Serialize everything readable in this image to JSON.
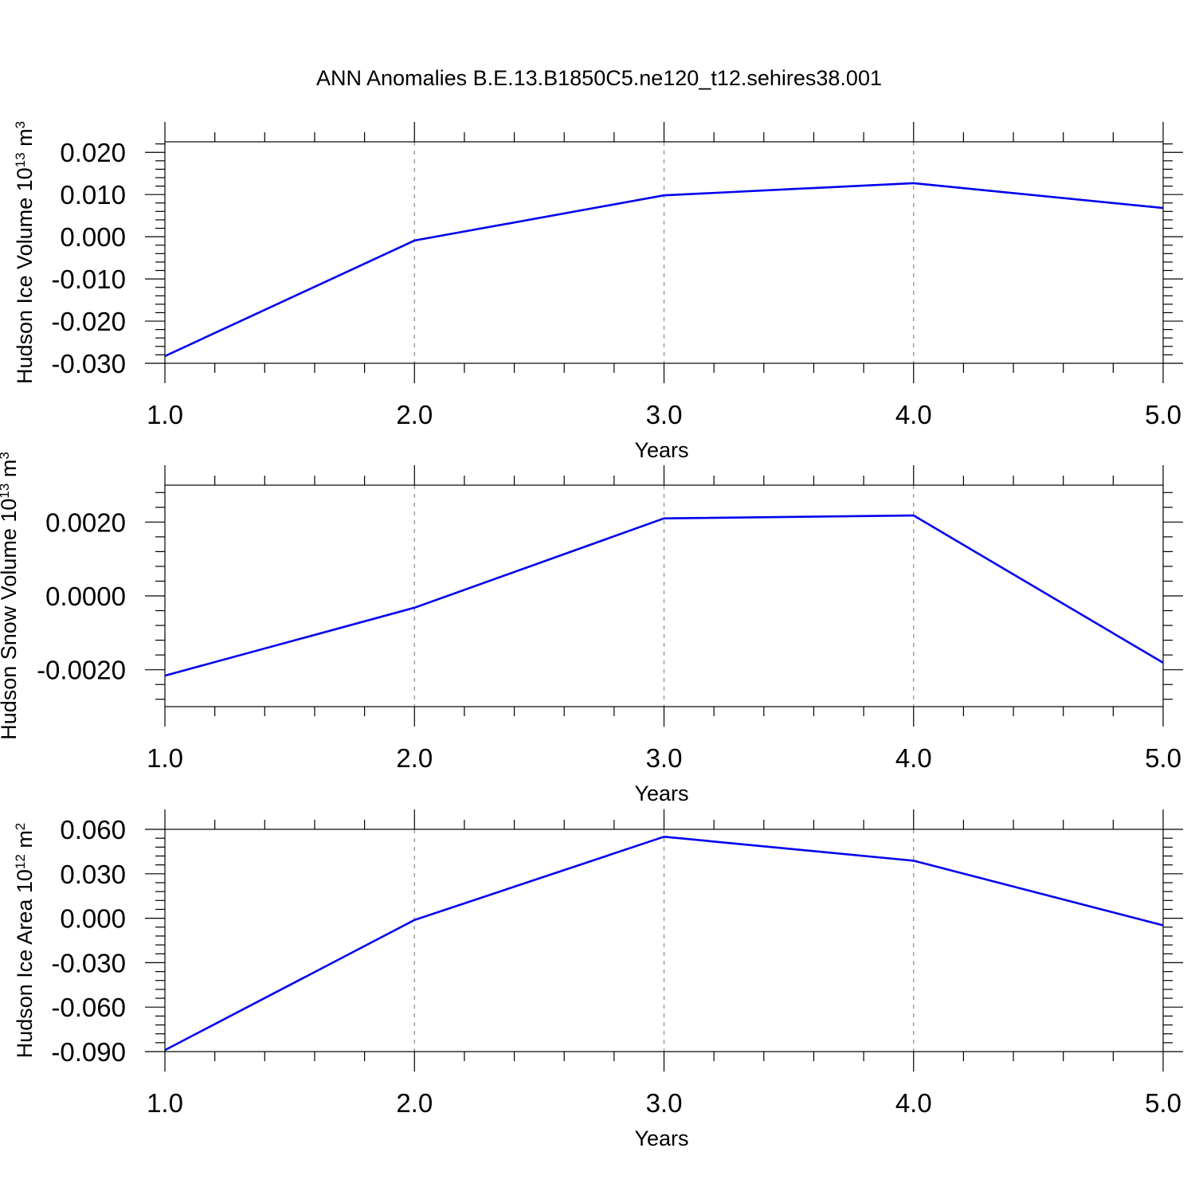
{
  "title": "ANN Anomalies B.E.13.B1850C5.ne120_t12.sehires38.001",
  "chart_data": [
    {
      "type": "line",
      "ylabel": {
        "text": "Hudson Ice Volume 10",
        "sup": "13",
        "unit": " m",
        "unit_sup": "3"
      },
      "xlabel": "Years",
      "x": [
        1.0,
        2.0,
        3.0,
        4.0,
        5.0
      ],
      "xlim": [
        1.0,
        5.0
      ],
      "xticks": [
        "1.0",
        "2.0",
        "3.0",
        "4.0",
        "5.0"
      ],
      "ylim": [
        -0.03,
        0.0225
      ],
      "yticks": [
        "0.020",
        "0.010",
        "0.000",
        "-0.010",
        "-0.020",
        "-0.030"
      ],
      "ytick_values": [
        0.02,
        0.01,
        0.0,
        -0.01,
        -0.02,
        -0.03
      ],
      "grid": "dashed vertical at major x ticks",
      "series": [
        {
          "values": [
            -0.0283,
            -0.0009,
            0.0098,
            0.0127,
            0.0068
          ],
          "color": "#0000ee"
        }
      ]
    },
    {
      "type": "line",
      "ylabel": {
        "text": "Hudson Snow Volume 10",
        "sup": "13",
        "unit": " m",
        "unit_sup": "3"
      },
      "xlabel": "Years",
      "x": [
        1.0,
        2.0,
        3.0,
        4.0,
        5.0
      ],
      "xlim": [
        1.0,
        5.0
      ],
      "xticks": [
        "1.0",
        "2.0",
        "3.0",
        "4.0",
        "5.0"
      ],
      "ylim": [
        -0.003,
        0.003
      ],
      "yticks": [
        "0.0020",
        "0.0000",
        "-0.0020"
      ],
      "ytick_values": [
        0.002,
        0.0,
        -0.002
      ],
      "grid": "dashed vertical at major x ticks",
      "series": [
        {
          "values": [
            -0.00216,
            -0.00032,
            0.0021,
            0.00218,
            -0.00181
          ],
          "color": "#0000ee"
        }
      ]
    },
    {
      "type": "line",
      "ylabel": {
        "text": "Hudson Ice Area 10",
        "sup": "12",
        "unit": " m",
        "unit_sup": "2"
      },
      "xlabel": "Years",
      "x": [
        1.0,
        2.0,
        3.0,
        4.0,
        5.0
      ],
      "xlim": [
        1.0,
        5.0
      ],
      "xticks": [
        "1.0",
        "2.0",
        "3.0",
        "4.0",
        "5.0"
      ],
      "ylim": [
        -0.09,
        0.06
      ],
      "yticks": [
        "0.060",
        "0.030",
        "0.000",
        "-0.030",
        "-0.060",
        "-0.090"
      ],
      "ytick_values": [
        0.06,
        0.03,
        0.0,
        -0.03,
        -0.06,
        -0.09
      ],
      "grid": "dashed vertical at major x ticks",
      "series": [
        {
          "values": [
            -0.089,
            -0.0012,
            0.055,
            0.0388,
            -0.0048
          ],
          "color": "#0000ee"
        }
      ]
    }
  ]
}
